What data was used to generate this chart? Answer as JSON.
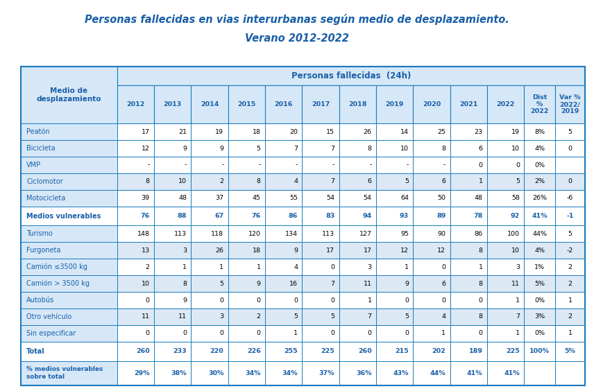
{
  "title_line1": "Personas fallecidas en vias interurbanas según medio de desplazamiento.",
  "title_line2": "Verano 2012-2022",
  "year_cols": [
    "2012",
    "2013",
    "2014",
    "2015",
    "2016",
    "2017",
    "2018",
    "2019",
    "2020",
    "2021",
    "2022"
  ],
  "extra_cols": [
    "Dist\n%\n2022",
    "Var %\n2022/\n2019"
  ],
  "rows": [
    {
      "label": "Peatón",
      "values": [
        "17",
        "21",
        "19",
        "18",
        "20",
        "15",
        "26",
        "14",
        "25",
        "23",
        "19",
        "8%",
        "5"
      ],
      "bold": false,
      "bg": "#ffffff"
    },
    {
      "label": "Bicicleta",
      "values": [
        "12",
        "9",
        "9",
        "5",
        "7",
        "7",
        "8",
        "10",
        "8",
        "6",
        "10",
        "4%",
        "0"
      ],
      "bold": false,
      "bg": "#ffffff"
    },
    {
      "label": "VMP",
      "values": [
        "-",
        "-",
        "-",
        "-",
        "-",
        "-",
        "-",
        "-",
        "-",
        "0",
        "0",
        "0%",
        ""
      ],
      "bold": false,
      "bg": "#ffffff"
    },
    {
      "label": "Ciclomotor",
      "values": [
        "8",
        "10",
        "2",
        "8",
        "4",
        "7",
        "6",
        "5",
        "6",
        "1",
        "5",
        "2%",
        "0"
      ],
      "bold": false,
      "bg": "#dce9f5"
    },
    {
      "label": "Motocicleta",
      "values": [
        "39",
        "48",
        "37",
        "45",
        "55",
        "54",
        "54",
        "64",
        "50",
        "48",
        "58",
        "26%",
        "-6"
      ],
      "bold": false,
      "bg": "#ffffff"
    },
    {
      "label": "Medios vulnerables",
      "values": [
        "76",
        "88",
        "67",
        "76",
        "86",
        "83",
        "94",
        "93",
        "89",
        "78",
        "92",
        "41%",
        "-1"
      ],
      "bold": true,
      "bg": "#ffffff"
    },
    {
      "label": "Turismo",
      "values": [
        "148",
        "113",
        "118",
        "120",
        "134",
        "113",
        "127",
        "95",
        "90",
        "86",
        "100",
        "44%",
        "5"
      ],
      "bold": false,
      "bg": "#ffffff"
    },
    {
      "label": "Furgoneta",
      "values": [
        "13",
        "3",
        "26",
        "18",
        "9",
        "17",
        "17",
        "12",
        "12",
        "8",
        "10",
        "4%",
        "-2"
      ],
      "bold": false,
      "bg": "#dce9f5"
    },
    {
      "label": "Camión ≤3500 kg",
      "values": [
        "2",
        "1",
        "1",
        "1",
        "4",
        "0",
        "3",
        "1",
        "0",
        "1",
        "3",
        "1%",
        "2"
      ],
      "bold": false,
      "bg": "#ffffff"
    },
    {
      "label": "Camión > 3500 kg",
      "values": [
        "10",
        "8",
        "5",
        "9",
        "16",
        "7",
        "11",
        "9",
        "6",
        "8",
        "11",
        "5%",
        "2"
      ],
      "bold": false,
      "bg": "#dce9f5"
    },
    {
      "label": "Autobús",
      "values": [
        "0",
        "9",
        "0",
        "0",
        "0",
        "0",
        "1",
        "0",
        "0",
        "0",
        "1",
        "0%",
        "1"
      ],
      "bold": false,
      "bg": "#ffffff"
    },
    {
      "label": "Otro vehículo",
      "values": [
        "11",
        "11",
        "3",
        "2",
        "5",
        "5",
        "7",
        "5",
        "4",
        "8",
        "7",
        "3%",
        "2"
      ],
      "bold": false,
      "bg": "#dce9f5"
    },
    {
      "label": "Sin especificar",
      "values": [
        "0",
        "0",
        "0",
        "0",
        "1",
        "0",
        "0",
        "0",
        "1",
        "0",
        "1",
        "0%",
        "1"
      ],
      "bold": false,
      "bg": "#ffffff"
    },
    {
      "label": "Total",
      "values": [
        "260",
        "233",
        "220",
        "226",
        "255",
        "225",
        "260",
        "215",
        "202",
        "189",
        "225",
        "100%",
        "5%"
      ],
      "bold": true,
      "bg": "#ffffff"
    },
    {
      "label": "% medios vulnerables\nsobre total",
      "values": [
        "29%",
        "38%",
        "30%",
        "34%",
        "34%",
        "37%",
        "36%",
        "43%",
        "44%",
        "41%",
        "41%",
        "",
        ""
      ],
      "bold": true,
      "bg": "#ffffff"
    }
  ],
  "title_color": "#1a5fa8",
  "header_bg": "#d6e8f7",
  "header_text_color": "#1a5fa8",
  "border_color": "#1a7abf",
  "label_col_bg": "#d6e8f7",
  "light_blue_bg": "#dce9f5",
  "white_bg": "#ffffff",
  "bold_color": "#1a5fa8",
  "normal_color": "#000000"
}
